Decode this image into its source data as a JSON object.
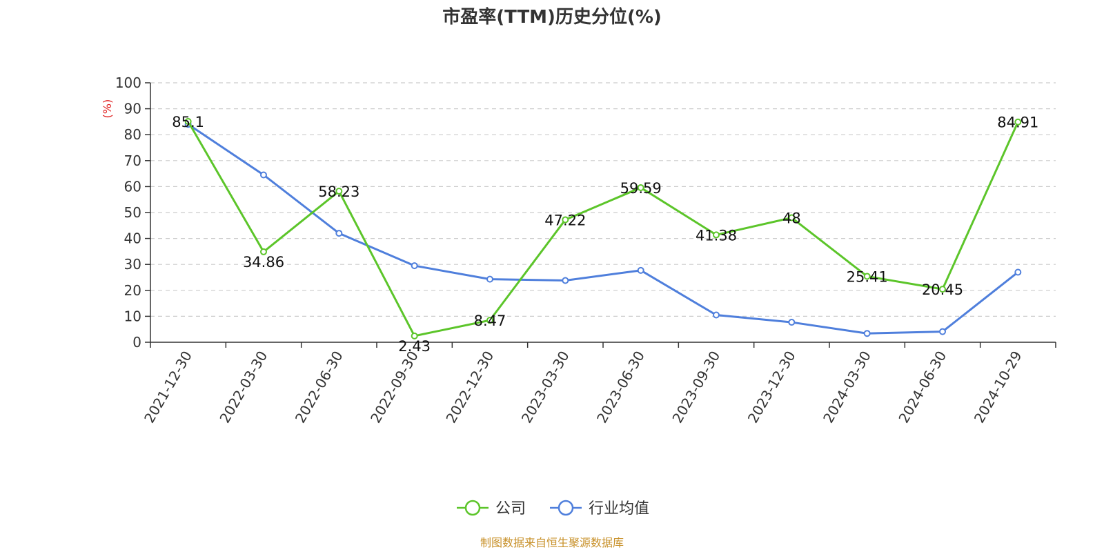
{
  "chart_data": {
    "type": "line",
    "title": "市盈率(TTM)历史分位(%)",
    "ylabel": "(%)",
    "ylim": [
      0,
      100
    ],
    "yticks": [
      0,
      10,
      20,
      30,
      40,
      50,
      60,
      70,
      80,
      90,
      100
    ],
    "grid": true,
    "legend_position": "bottom",
    "categories": [
      "2021-12-30",
      "2022-03-30",
      "2022-06-30",
      "2022-09-30",
      "2022-12-30",
      "2023-03-30",
      "2023-06-30",
      "2023-09-30",
      "2023-12-30",
      "2024-03-30",
      "2024-06-30",
      "2024-10-29"
    ],
    "series": [
      {
        "name": "公司",
        "color": "#5cc52a",
        "values": [
          85.1,
          34.86,
          58.23,
          2.43,
          8.47,
          47.22,
          59.59,
          41.38,
          48,
          25.41,
          20.45,
          84.91
        ],
        "labels": [
          "85.1",
          "34.86",
          "58.23",
          "2.43",
          "8.47",
          "47.22",
          "59.59",
          "41.38",
          "48",
          "25.41",
          "20.45",
          "84.91"
        ]
      },
      {
        "name": "行业均值",
        "color": "#4f7fdc",
        "values": [
          84,
          64.5,
          42,
          29.5,
          24.3,
          23.8,
          27.7,
          10.5,
          7.7,
          3.4,
          4.1,
          27
        ]
      }
    ],
    "source": "制图数据来自恒生聚源数据库",
    "source_color": "#c8912a",
    "ylabel_color": "#e02020"
  }
}
